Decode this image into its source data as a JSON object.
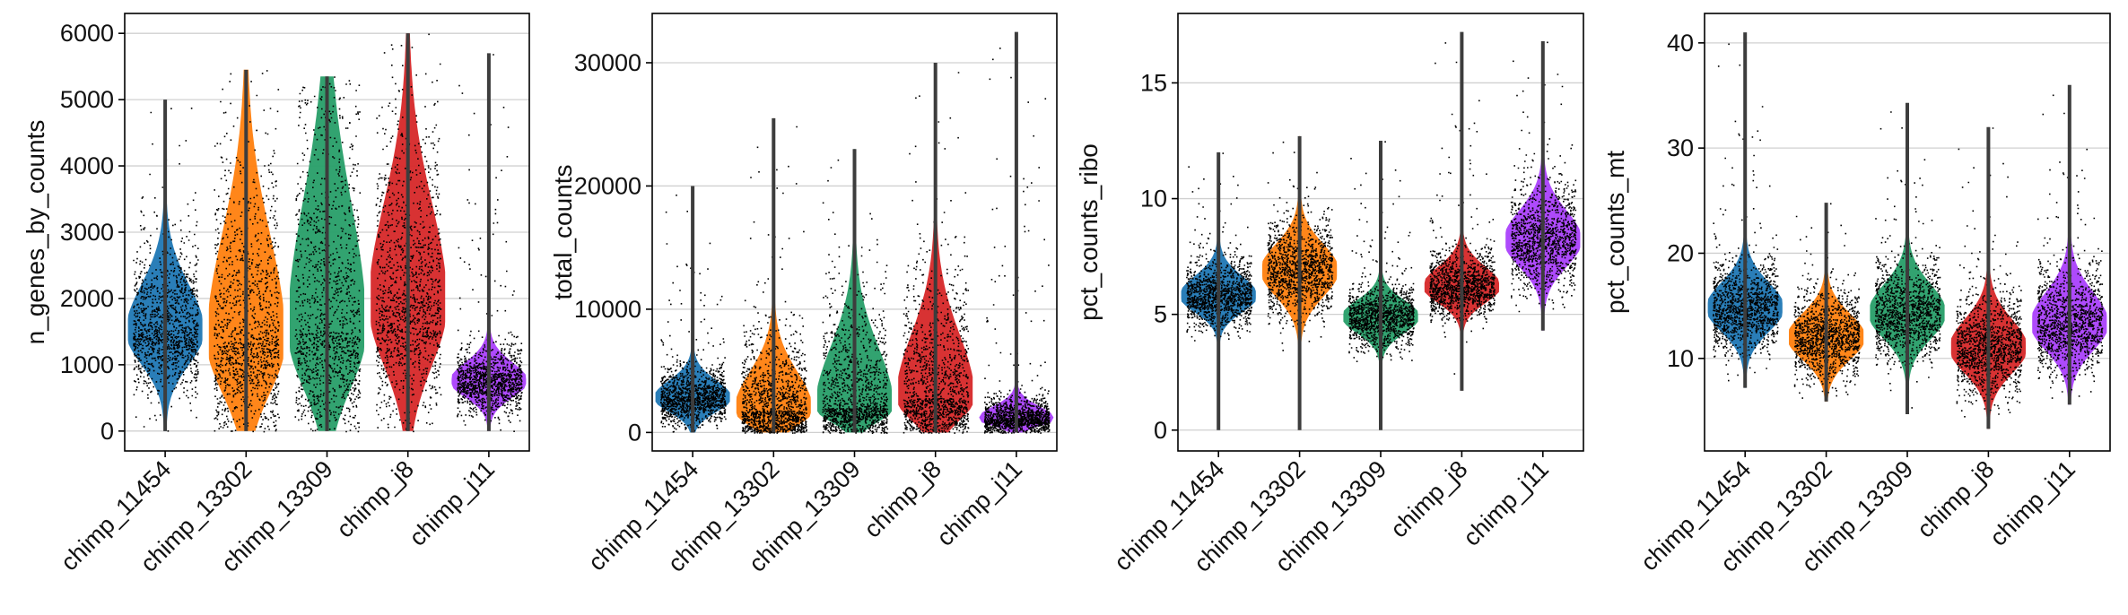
{
  "chart_data": [
    {
      "type": "violin",
      "ylabel": "n_genes_by_counts",
      "categories": [
        "chimp_11454",
        "chimp_13302",
        "chimp_13309",
        "chimp_j8",
        "chimp_j11"
      ],
      "colors": [
        "#1f77b4",
        "#ff7f0e",
        "#279e68",
        "#d62728",
        "#aa40fc"
      ],
      "ylim": [
        -300,
        6300
      ],
      "yticks": [
        0,
        1000,
        2000,
        3000,
        4000,
        5000,
        6000
      ],
      "grid": true,
      "series": [
        {
          "median": 1500,
          "q1": 1150,
          "q3": 2000,
          "min": 0,
          "max": 5000,
          "spread": 900
        },
        {
          "median": 1350,
          "q1": 800,
          "q3": 2500,
          "min": 0,
          "max": 5450,
          "spread": 1100
        },
        {
          "median": 1500,
          "q1": 900,
          "q3": 2900,
          "min": 0,
          "max": 5350,
          "spread": 1250
        },
        {
          "median": 1900,
          "q1": 1250,
          "q3": 3000,
          "min": 0,
          "max": 6000,
          "spread": 1200
        },
        {
          "median": 750,
          "q1": 580,
          "q3": 950,
          "min": 0,
          "max": 5700,
          "spread": 600
        }
      ]
    },
    {
      "type": "violin",
      "ylabel": "total_counts",
      "categories": [
        "chimp_11454",
        "chimp_13302",
        "chimp_13309",
        "chimp_j8",
        "chimp_j11"
      ],
      "colors": [
        "#1f77b4",
        "#ff7f0e",
        "#279e68",
        "#d62728",
        "#aa40fc"
      ],
      "ylim": [
        -1500,
        34000
      ],
      "yticks": [
        0,
        10000,
        20000,
        30000
      ],
      "grid": true,
      "series": [
        {
          "median": 2800,
          "q1": 2000,
          "q3": 3800,
          "min": 0,
          "max": 20000,
          "spread": 2300
        },
        {
          "median": 1800,
          "q1": 900,
          "q3": 4000,
          "min": 0,
          "max": 25500,
          "spread": 3000
        },
        {
          "median": 2000,
          "q1": 1200,
          "q3": 5500,
          "min": 0,
          "max": 23000,
          "spread": 3500
        },
        {
          "median": 2800,
          "q1": 1500,
          "q3": 6500,
          "min": 0,
          "max": 30000,
          "spread": 3500
        },
        {
          "median": 1100,
          "q1": 700,
          "q3": 1800,
          "min": 0,
          "max": 32500,
          "spread": 2500
        }
      ]
    },
    {
      "type": "violin",
      "ylabel": "pct_counts_ribo",
      "categories": [
        "chimp_11454",
        "chimp_13302",
        "chimp_13309",
        "chimp_j8",
        "chimp_j11"
      ],
      "colors": [
        "#1f77b4",
        "#ff7f0e",
        "#279e68",
        "#d62728",
        "#aa40fc"
      ],
      "ylim": [
        -0.9,
        18
      ],
      "yticks": [
        0,
        5,
        10,
        15
      ],
      "grid": true,
      "series": [
        {
          "median": 5.8,
          "q1": 5.3,
          "q3": 6.4,
          "min": 0,
          "max": 12,
          "spread": 1.1
        },
        {
          "median": 6.9,
          "q1": 6.1,
          "q3": 7.7,
          "min": 0,
          "max": 12.7,
          "spread": 1.4
        },
        {
          "median": 4.9,
          "q1": 4.4,
          "q3": 5.4,
          "min": 0,
          "max": 12.5,
          "spread": 0.9
        },
        {
          "median": 6.2,
          "q1": 5.7,
          "q3": 6.8,
          "min": 1.7,
          "max": 17.2,
          "spread": 1.0
        },
        {
          "median": 8.2,
          "q1": 7.4,
          "q3": 9.1,
          "min": 4.3,
          "max": 16.8,
          "spread": 1.5
        }
      ]
    },
    {
      "type": "violin",
      "ylabel": "pct_counts_mt",
      "categories": [
        "chimp_11454",
        "chimp_13302",
        "chimp_13309",
        "chimp_j8",
        "chimp_j11"
      ],
      "colors": [
        "#1f77b4",
        "#ff7f0e",
        "#279e68",
        "#d62728",
        "#aa40fc"
      ],
      "ylim": [
        1.2,
        42.8
      ],
      "yticks": [
        10,
        20,
        30,
        40
      ],
      "grid": true,
      "series": [
        {
          "median": 14.8,
          "q1": 13.2,
          "q3": 16.5,
          "min": 7.2,
          "max": 41,
          "spread": 3.0
        },
        {
          "median": 12.0,
          "q1": 10.5,
          "q3": 13.6,
          "min": 5.9,
          "max": 24.8,
          "spread": 2.6
        },
        {
          "median": 14.3,
          "q1": 12.6,
          "q3": 16.2,
          "min": 4.7,
          "max": 34.3,
          "spread": 3.0
        },
        {
          "median": 11.0,
          "q1": 9.3,
          "q3": 12.9,
          "min": 3.3,
          "max": 32,
          "spread": 3.0
        },
        {
          "median": 13.3,
          "q1": 11.5,
          "q3": 15.4,
          "min": 5.6,
          "max": 36,
          "spread": 3.2
        }
      ]
    }
  ]
}
